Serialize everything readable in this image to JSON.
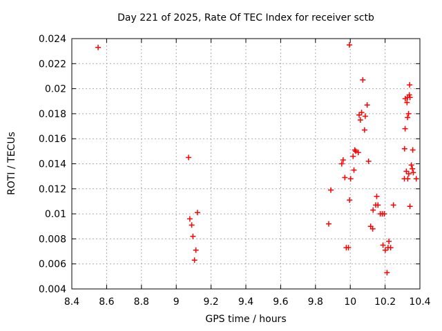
{
  "window": {
    "background": "#ffffff"
  },
  "chart_data": {
    "type": "scatter",
    "title": "Day 221 of 2025, Rate Of TEC Index for receiver sctb",
    "xlabel": "GPS time / hours",
    "ylabel": "ROTI / TECUs",
    "xlim": [
      8.4,
      10.4
    ],
    "ylim": [
      0.004,
      0.024
    ],
    "xtick_values": [
      8.4,
      8.6,
      8.8,
      9.0,
      9.2,
      9.4,
      9.6,
      9.8,
      10.0,
      10.2,
      10.4
    ],
    "xtick_labels": [
      "8.4",
      "8.6",
      "8.8",
      "9",
      "9.2",
      "9.4",
      "9.6",
      "9.8",
      "10",
      "10.2",
      "10.4"
    ],
    "ytick_values": [
      0.004,
      0.006,
      0.008,
      0.01,
      0.012,
      0.014,
      0.016,
      0.018,
      0.02,
      0.022,
      0.024
    ],
    "ytick_labels": [
      "0.004",
      "0.006",
      "0.008",
      "0.01",
      "0.012",
      "0.014",
      "0.016",
      "0.018",
      "0.02",
      "0.022",
      "0.024"
    ],
    "grid": true,
    "legend": "none",
    "marker": {
      "shape": "plus",
      "color": "#ff0000",
      "size": 9
    },
    "colors": {
      "axis": "#000000",
      "grid": "#aaaaaa",
      "text": "#000000"
    },
    "series": [
      {
        "name": "roti",
        "points": [
          [
            8.551,
            0.0233
          ],
          [
            9.071,
            0.0145
          ],
          [
            9.078,
            0.0096
          ],
          [
            9.089,
            0.0091
          ],
          [
            9.096,
            0.0082
          ],
          [
            9.105,
            0.0063
          ],
          [
            9.113,
            0.0071
          ],
          [
            9.122,
            0.0101
          ],
          [
            9.876,
            0.0092
          ],
          [
            9.888,
            0.0119
          ],
          [
            9.951,
            0.014
          ],
          [
            9.959,
            0.0143
          ],
          [
            9.969,
            0.0129
          ],
          [
            9.977,
            0.0073
          ],
          [
            9.989,
            0.0073
          ],
          [
            9.995,
            0.0235
          ],
          [
            9.996,
            0.0111
          ],
          [
            10.002,
            0.0128
          ],
          [
            10.016,
            0.0146
          ],
          [
            10.021,
            0.0135
          ],
          [
            10.026,
            0.0151
          ],
          [
            10.031,
            0.015
          ],
          [
            10.046,
            0.0149
          ],
          [
            10.051,
            0.0179
          ],
          [
            10.058,
            0.0175
          ],
          [
            10.065,
            0.0181
          ],
          [
            10.072,
            0.0207
          ],
          [
            10.082,
            0.0167
          ],
          [
            10.086,
            0.0178
          ],
          [
            10.097,
            0.0187
          ],
          [
            10.105,
            0.0142
          ],
          [
            10.117,
            0.009
          ],
          [
            10.129,
            0.0088
          ],
          [
            10.131,
            0.0103
          ],
          [
            10.146,
            0.0107
          ],
          [
            10.152,
            0.0114
          ],
          [
            10.159,
            0.0107
          ],
          [
            10.172,
            0.01
          ],
          [
            10.184,
            0.01
          ],
          [
            10.195,
            0.01
          ],
          [
            10.188,
            0.0075
          ],
          [
            10.201,
            0.0071
          ],
          [
            10.211,
            0.0053
          ],
          [
            10.217,
            0.0073
          ],
          [
            10.222,
            0.0078
          ],
          [
            10.232,
            0.0073
          ],
          [
            10.248,
            0.0107
          ],
          [
            10.311,
            0.0128
          ],
          [
            10.312,
            0.0152
          ],
          [
            10.315,
            0.0168
          ],
          [
            10.316,
            0.0192
          ],
          [
            10.322,
            0.0134
          ],
          [
            10.326,
            0.0189
          ],
          [
            10.329,
            0.0177
          ],
          [
            10.329,
            0.0193
          ],
          [
            10.33,
            0.0128
          ],
          [
            10.335,
            0.018
          ],
          [
            10.336,
            0.0132
          ],
          [
            10.339,
            0.0195
          ],
          [
            10.341,
            0.0203
          ],
          [
            10.343,
            0.0193
          ],
          [
            10.343,
            0.0106
          ],
          [
            10.351,
            0.0139
          ],
          [
            10.357,
            0.0136
          ],
          [
            10.359,
            0.0151
          ],
          [
            10.362,
            0.0133
          ],
          [
            10.379,
            0.0128
          ]
        ]
      }
    ]
  }
}
